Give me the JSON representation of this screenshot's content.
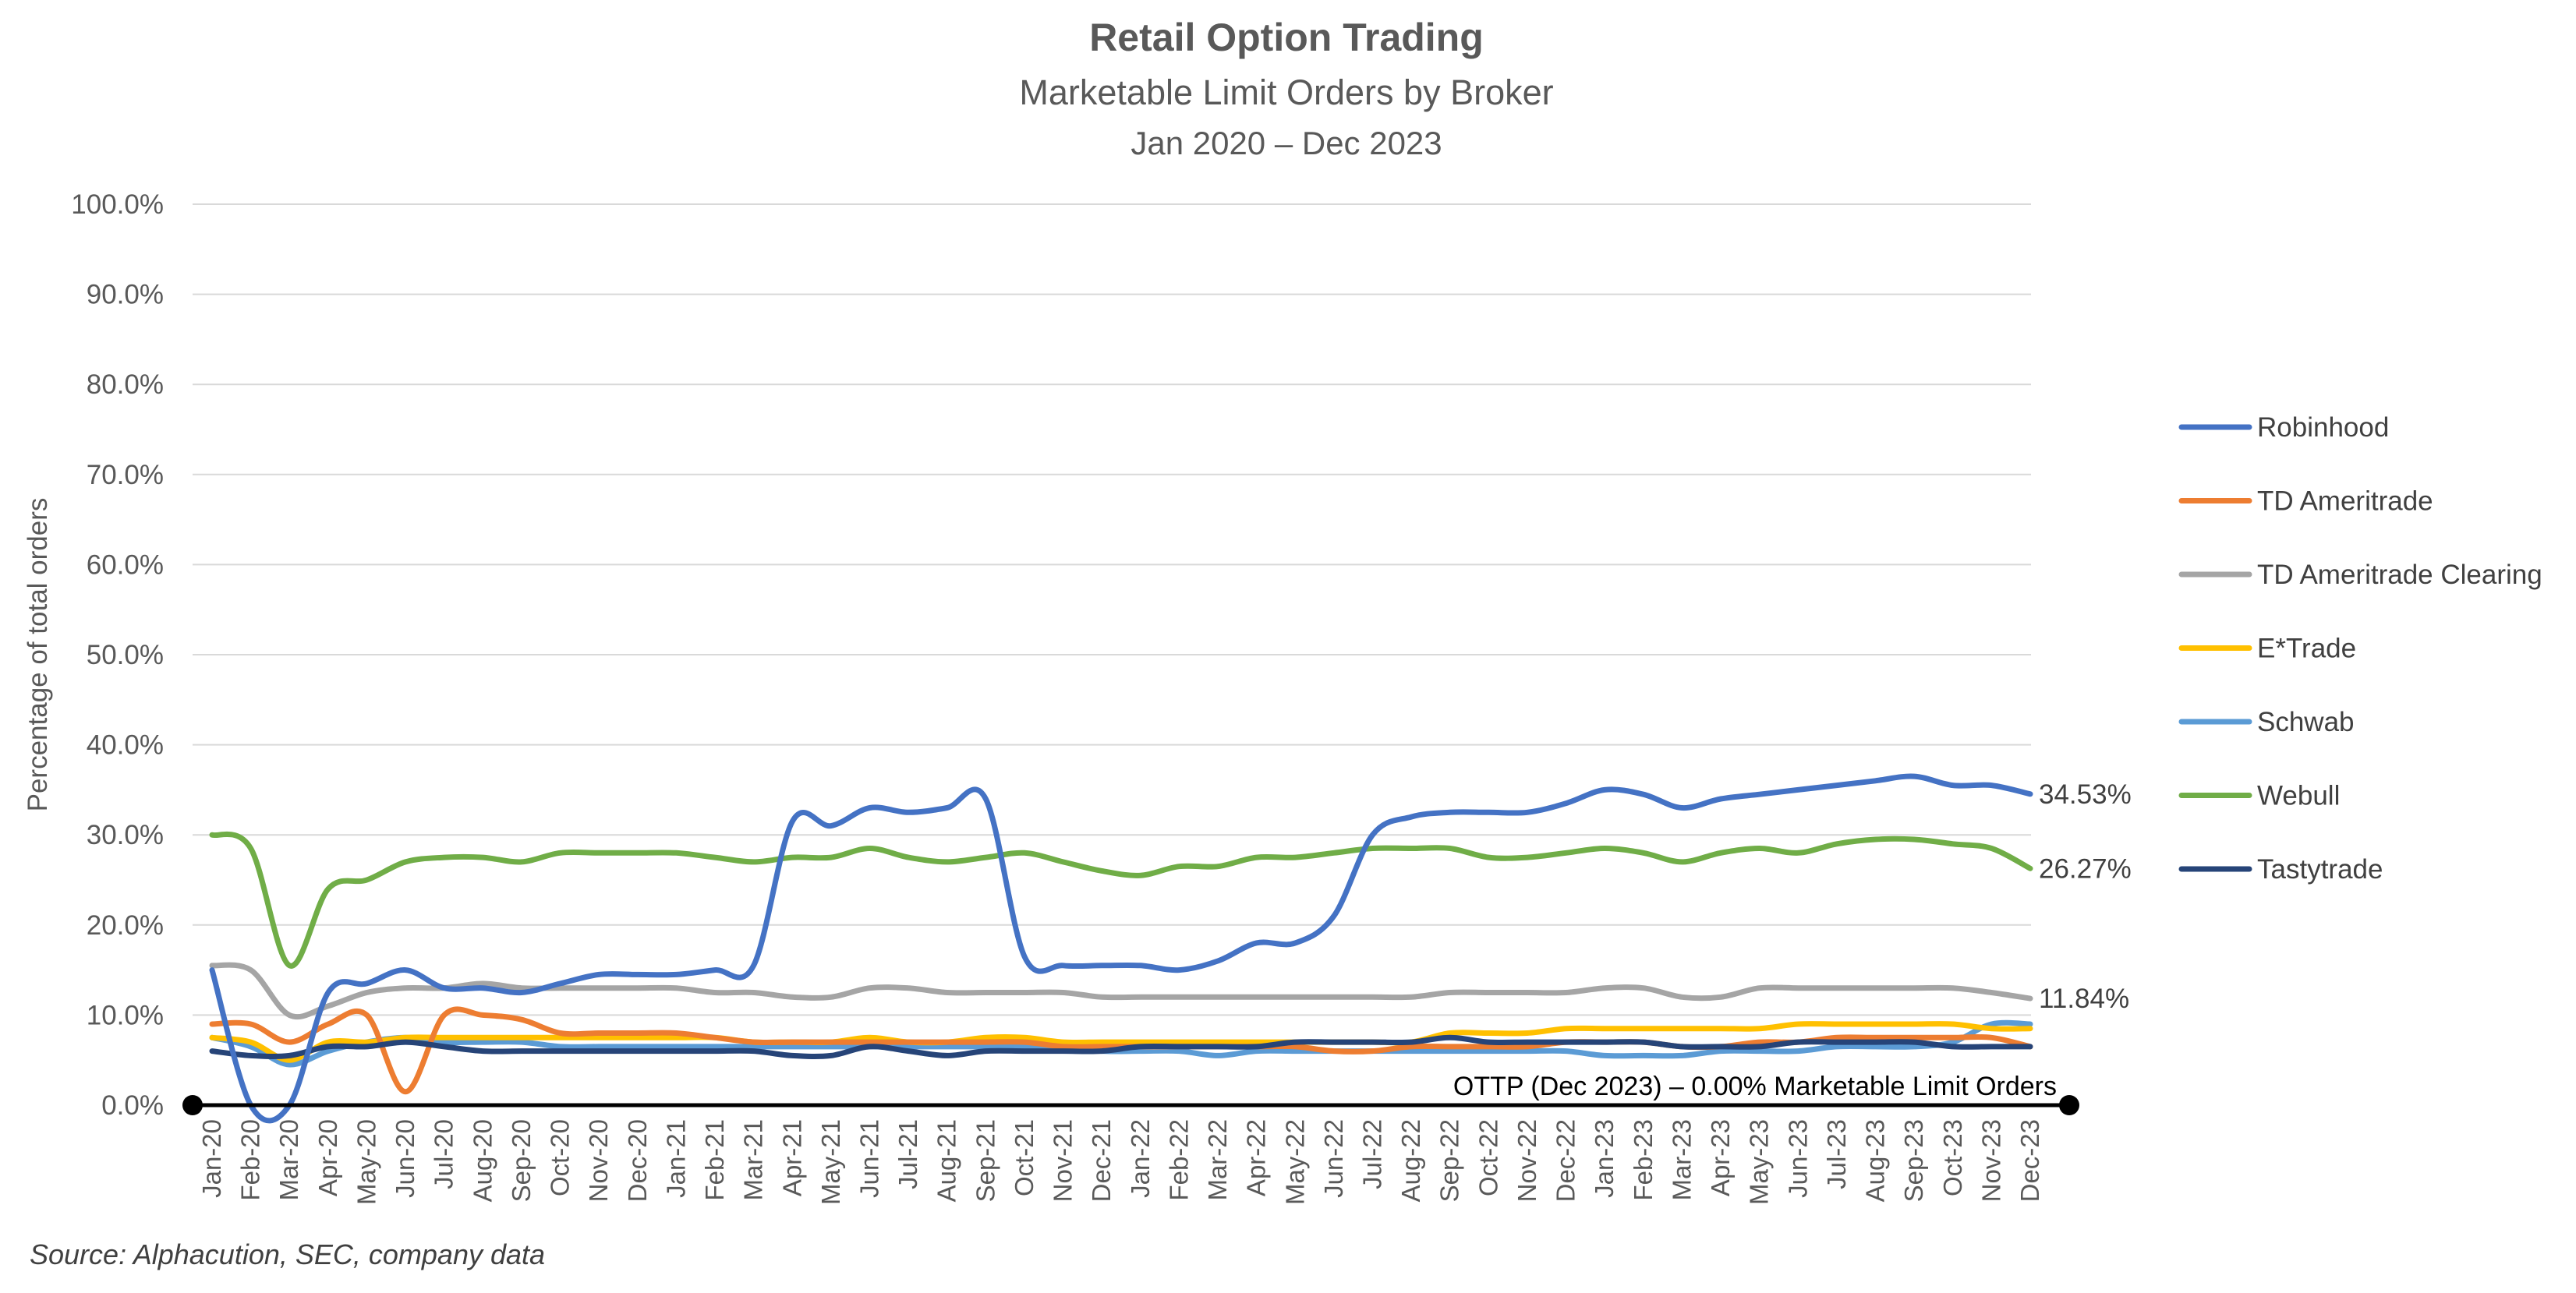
{
  "chart_data": {
    "type": "line",
    "title": "Retail Option Trading",
    "subtitle": "Marketable Limit Orders by Broker",
    "date_range": "Jan 2020 – Dec 2023",
    "ylabel": "Percentage of total orders",
    "xlabel": "",
    "ylim": [
      0,
      100
    ],
    "yticks": [
      "0.0%",
      "10.0%",
      "20.0%",
      "30.0%",
      "40.0%",
      "50.0%",
      "60.0%",
      "70.0%",
      "80.0%",
      "90.0%",
      "100.0%"
    ],
    "grid": true,
    "legend_position": "right",
    "categories": [
      "Jan-20",
      "Feb-20",
      "Mar-20",
      "Apr-20",
      "May-20",
      "Jun-20",
      "Jul-20",
      "Aug-20",
      "Sep-20",
      "Oct-20",
      "Nov-20",
      "Dec-20",
      "Jan-21",
      "Feb-21",
      "Mar-21",
      "Apr-21",
      "May-21",
      "Jun-21",
      "Jul-21",
      "Aug-21",
      "Sep-21",
      "Oct-21",
      "Nov-21",
      "Dec-21",
      "Jan-22",
      "Feb-22",
      "Mar-22",
      "Apr-22",
      "May-22",
      "Jun-22",
      "Jul-22",
      "Aug-22",
      "Sep-22",
      "Oct-22",
      "Nov-22",
      "Dec-22",
      "Jan-23",
      "Feb-23",
      "Mar-23",
      "Apr-23",
      "May-23",
      "Jun-23",
      "Jul-23",
      "Aug-23",
      "Sep-23",
      "Oct-23",
      "Nov-23",
      "Dec-23"
    ],
    "series": [
      {
        "name": "Robinhood",
        "color": "#4472c4",
        "values": [
          15.0,
          0.0,
          0.0,
          12.5,
          13.5,
          15.0,
          13.0,
          13.0,
          12.5,
          13.5,
          14.5,
          14.5,
          14.5,
          15.0,
          15.5,
          31.5,
          31.0,
          33.0,
          32.5,
          33.0,
          34.0,
          16.5,
          15.5,
          15.5,
          15.5,
          15.0,
          16.0,
          18.0,
          18.0,
          21.0,
          30.0,
          32.0,
          32.5,
          32.5,
          32.5,
          33.5,
          35.0,
          34.5,
          33.0,
          34.0,
          34.5,
          35.0,
          35.5,
          36.0,
          36.5,
          35.5,
          35.5,
          34.53
        ]
      },
      {
        "name": "TD Ameritrade",
        "color": "#ed7d31",
        "values": [
          9.0,
          9.0,
          7.0,
          9.0,
          10.0,
          1.5,
          10.0,
          10.0,
          9.5,
          8.0,
          8.0,
          8.0,
          8.0,
          7.5,
          7.0,
          7.0,
          7.0,
          7.0,
          7.0,
          7.0,
          7.0,
          7.0,
          6.5,
          6.5,
          6.5,
          6.5,
          6.5,
          6.5,
          6.5,
          6.0,
          6.0,
          6.5,
          6.5,
          6.5,
          6.5,
          7.0,
          7.0,
          7.0,
          6.5,
          6.5,
          7.0,
          7.0,
          7.5,
          7.5,
          7.5,
          7.5,
          7.5,
          6.5
        ]
      },
      {
        "name": "TD Ameritrade Clearing",
        "color": "#a5a5a5",
        "values": [
          15.5,
          15.0,
          10.0,
          11.0,
          12.5,
          13.0,
          13.0,
          13.5,
          13.0,
          13.0,
          13.0,
          13.0,
          13.0,
          12.5,
          12.5,
          12.0,
          12.0,
          13.0,
          13.0,
          12.5,
          12.5,
          12.5,
          12.5,
          12.0,
          12.0,
          12.0,
          12.0,
          12.0,
          12.0,
          12.0,
          12.0,
          12.0,
          12.5,
          12.5,
          12.5,
          12.5,
          13.0,
          13.0,
          12.0,
          12.0,
          13.0,
          13.0,
          13.0,
          13.0,
          13.0,
          13.0,
          12.5,
          11.84
        ]
      },
      {
        "name": "E*Trade",
        "color": "#ffc000",
        "values": [
          7.5,
          7.0,
          5.0,
          7.0,
          7.0,
          7.5,
          7.5,
          7.5,
          7.5,
          7.5,
          7.5,
          7.5,
          7.5,
          7.5,
          7.0,
          7.0,
          7.0,
          7.5,
          7.0,
          7.0,
          7.5,
          7.5,
          7.0,
          7.0,
          7.0,
          7.0,
          7.0,
          7.0,
          7.0,
          7.0,
          7.0,
          7.0,
          8.0,
          8.0,
          8.0,
          8.5,
          8.5,
          8.5,
          8.5,
          8.5,
          8.5,
          9.0,
          9.0,
          9.0,
          9.0,
          9.0,
          8.5,
          8.5
        ]
      },
      {
        "name": "Schwab",
        "color": "#5b9bd5",
        "values": [
          7.5,
          6.5,
          4.5,
          6.0,
          7.0,
          7.5,
          7.0,
          7.0,
          7.0,
          6.5,
          6.5,
          6.5,
          6.5,
          6.5,
          6.5,
          6.5,
          6.5,
          6.5,
          6.5,
          6.5,
          6.5,
          6.5,
          6.5,
          6.0,
          6.0,
          6.0,
          5.5,
          6.0,
          6.0,
          6.0,
          6.0,
          6.0,
          6.0,
          6.0,
          6.0,
          6.0,
          5.5,
          5.5,
          5.5,
          6.0,
          6.0,
          6.0,
          6.5,
          6.5,
          6.5,
          7.0,
          9.0,
          9.0
        ]
      },
      {
        "name": "Webull",
        "color": "#70ad47",
        "values": [
          30.0,
          28.5,
          15.5,
          24.0,
          25.0,
          27.0,
          27.5,
          27.5,
          27.0,
          28.0,
          28.0,
          28.0,
          28.0,
          27.5,
          27.0,
          27.5,
          27.5,
          28.5,
          27.5,
          27.0,
          27.5,
          28.0,
          27.0,
          26.0,
          25.5,
          26.5,
          26.5,
          27.5,
          27.5,
          28.0,
          28.5,
          28.5,
          28.5,
          27.5,
          27.5,
          28.0,
          28.5,
          28.0,
          27.0,
          28.0,
          28.5,
          28.0,
          29.0,
          29.5,
          29.5,
          29.0,
          28.5,
          26.27
        ]
      },
      {
        "name": "Tastytrade",
        "color": "#264478",
        "values": [
          6.0,
          5.5,
          5.5,
          6.5,
          6.5,
          7.0,
          6.5,
          6.0,
          6.0,
          6.0,
          6.0,
          6.0,
          6.0,
          6.0,
          6.0,
          5.5,
          5.5,
          6.5,
          6.0,
          5.5,
          6.0,
          6.0,
          6.0,
          6.0,
          6.5,
          6.5,
          6.5,
          6.5,
          7.0,
          7.0,
          7.0,
          7.0,
          7.5,
          7.0,
          7.0,
          7.0,
          7.0,
          7.0,
          6.5,
          6.5,
          6.5,
          7.0,
          7.0,
          7.0,
          7.0,
          6.5,
          6.5,
          6.5
        ]
      }
    ],
    "end_labels": [
      {
        "series": "Robinhood",
        "text": "34.53%"
      },
      {
        "series": "Webull",
        "text": "26.27%"
      },
      {
        "series": "TD Ameritrade Clearing",
        "text": "11.84%"
      }
    ],
    "annotation": {
      "text": "OTTP (Dec 2023) – 0.00% Marketable Limit Orders",
      "value": 0
    },
    "source": "Source: Alphacution, SEC, company data"
  }
}
